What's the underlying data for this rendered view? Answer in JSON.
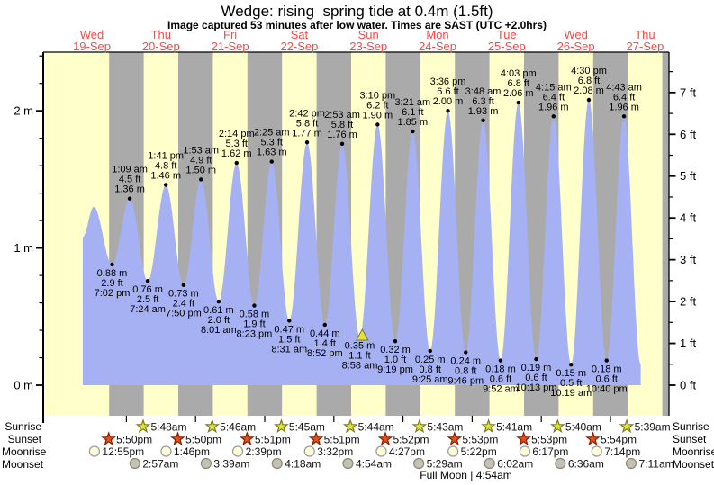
{
  "header": {
    "title": "Wedge: rising  spring tide at 0.4m (1.5ft)",
    "subtitle": "Image captured 53 minutes after low water. Times are SAST (UTC +2.0hrs)"
  },
  "colors": {
    "background": "#ffffff",
    "tide_fill": "#a5b1f2",
    "day_band": "#ffffcc",
    "night_band": "#aaaaaa",
    "day_label_red": "#ff4545",
    "marker_triangle": "#e8e135"
  },
  "axes": {
    "left_ticks": [
      "0 m",
      "1 m",
      "2 m"
    ],
    "right_ticks": [
      "0 ft",
      "1 ft",
      "2 ft",
      "3 ft",
      "4 ft",
      "5 ft",
      "6 ft",
      "7 ft"
    ]
  },
  "days": [
    {
      "dow": "Wed",
      "date": "19-Sep"
    },
    {
      "dow": "Thu",
      "date": "20-Sep"
    },
    {
      "dow": "Fri",
      "date": "21-Sep"
    },
    {
      "dow": "Sat",
      "date": "22-Sep"
    },
    {
      "dow": "Sun",
      "date": "23-Sep"
    },
    {
      "dow": "Mon",
      "date": "24-Sep"
    },
    {
      "dow": "Tue",
      "date": "25-Sep"
    },
    {
      "dow": "Wed",
      "date": "26-Sep"
    },
    {
      "dow": "Thu",
      "date": "27-Sep"
    }
  ],
  "chart_data": {
    "type": "area",
    "title": "Wedge: rising  spring tide at 0.4m (1.5ft)",
    "subtitle": "Image captured 53 minutes after low water. Times are SAST (UTC +2.0hrs)",
    "ylabel_left": "meters",
    "ylabel_right": "feet",
    "ylim_m": [
      0,
      2.43
    ],
    "ylim_ft": [
      0,
      7.5
    ],
    "x_range": [
      "Wed 19-Sep",
      "Thu 27-Sep"
    ],
    "grid": "off",
    "bands": {
      "day": "#ffffcc",
      "night": "#aaaaaa",
      "night_span": "6pm-6am"
    },
    "tide_events": [
      {
        "type": "low",
        "day": 0,
        "time": "7:02 pm",
        "m": "0.88 m",
        "ft": "2.9 ft"
      },
      {
        "type": "high",
        "day": 1,
        "time": "1:09 am",
        "m": "1.36 m",
        "ft": "4.5 ft"
      },
      {
        "type": "low",
        "day": 1,
        "time": "7:24 am",
        "m": "0.76 m",
        "ft": "2.5 ft"
      },
      {
        "type": "high",
        "day": 1,
        "time": "1:41 pm",
        "m": "1.46 m",
        "ft": "4.8 ft"
      },
      {
        "type": "low",
        "day": 1,
        "time": "7:50 pm",
        "m": "0.73 m",
        "ft": "2.4 ft"
      },
      {
        "type": "high",
        "day": 2,
        "time": "1:53 am",
        "m": "1.50 m",
        "ft": "4.9 ft"
      },
      {
        "type": "low",
        "day": 2,
        "time": "8:01 am",
        "m": "0.61 m",
        "ft": "2.0 ft"
      },
      {
        "type": "high",
        "day": 2,
        "time": "2:14 pm",
        "m": "1.62 m",
        "ft": "5.3 ft"
      },
      {
        "type": "low",
        "day": 2,
        "time": "8:23 pm",
        "m": "0.58 m",
        "ft": "1.9 ft"
      },
      {
        "type": "high",
        "day": 3,
        "time": "2:25 am",
        "m": "1.63 m",
        "ft": "5.3 ft"
      },
      {
        "type": "low",
        "day": 3,
        "time": "8:31 am",
        "m": "0.47 m",
        "ft": "1.5 ft"
      },
      {
        "type": "high",
        "day": 3,
        "time": "2:42 pm",
        "m": "1.77 m",
        "ft": "5.8 ft"
      },
      {
        "type": "low",
        "day": 3,
        "time": "8:52 pm",
        "m": "0.44 m",
        "ft": "1.4 ft"
      },
      {
        "type": "high",
        "day": 4,
        "time": "2:53 am",
        "m": "1.76 m",
        "ft": "5.8 ft"
      },
      {
        "type": "low",
        "day": 4,
        "time": "8:58 am",
        "m": "0.35 m",
        "ft": "1.1 ft"
      },
      {
        "type": "high",
        "day": 4,
        "time": "3:10 pm",
        "m": "1.90 m",
        "ft": "6.2 ft"
      },
      {
        "type": "low",
        "day": 4,
        "time": "9:19 pm",
        "m": "0.32 m",
        "ft": "1.0 ft"
      },
      {
        "type": "high",
        "day": 5,
        "time": "3:21 am",
        "m": "1.85 m",
        "ft": "6.1 ft"
      },
      {
        "type": "low",
        "day": 5,
        "time": "9:25 am",
        "m": "0.25 m",
        "ft": "0.8 ft"
      },
      {
        "type": "high",
        "day": 5,
        "time": "3:36 pm",
        "m": "2.00 m",
        "ft": "6.6 ft"
      },
      {
        "type": "low",
        "day": 5,
        "time": "9:46 pm",
        "m": "0.24 m",
        "ft": "0.8 ft"
      },
      {
        "type": "high",
        "day": 6,
        "time": "3:48 am",
        "m": "1.93 m",
        "ft": "6.3 ft"
      },
      {
        "type": "low",
        "day": 6,
        "time": "9:52 am",
        "m": "0.18 m",
        "ft": "0.6 ft"
      },
      {
        "type": "high",
        "day": 6,
        "time": "4:03 pm",
        "m": "2.06 m",
        "ft": "6.8 ft"
      },
      {
        "type": "low",
        "day": 6,
        "time": "10:13 pm",
        "m": "0.19 m",
        "ft": "0.6 ft"
      },
      {
        "type": "high",
        "day": 7,
        "time": "4:15 am",
        "m": "1.96 m",
        "ft": "6.4 ft"
      },
      {
        "type": "low",
        "day": 7,
        "time": "10:19 am",
        "m": "0.15 m",
        "ft": "0.5 ft"
      },
      {
        "type": "high",
        "day": 7,
        "time": "4:30 pm",
        "m": "2.08 m",
        "ft": "6.8 ft"
      },
      {
        "type": "low",
        "day": 7,
        "time": "10:40 pm",
        "m": "0.18 m",
        "ft": "0.6 ft"
      },
      {
        "type": "high",
        "day": 8,
        "time": "4:43 am",
        "m": "1.96 m",
        "ft": "6.4 ft"
      }
    ],
    "curve_edges": {
      "start": {
        "day": 0,
        "time": "8:50 am",
        "height_m": 1.08
      },
      "first_peak_unlabeled": {
        "day": 0,
        "time": "12:40 pm",
        "height_m": 1.3
      },
      "end": {
        "day": 8,
        "time": "10:30 am",
        "height_m": 0.15
      }
    },
    "capture_marker": {
      "day": 4,
      "time": "9:51 am",
      "shape": "triangle",
      "note": "53 minutes after low water"
    }
  },
  "sun_moon": {
    "rows": [
      {
        "key": "sunrise",
        "label": "Sunrise",
        "icon": "sunrise-star",
        "color": "#dde23c",
        "times": [
          {
            "day": 1,
            "time": "5:48am"
          },
          {
            "day": 2,
            "time": "5:46am"
          },
          {
            "day": 3,
            "time": "5:45am"
          },
          {
            "day": 4,
            "time": "5:44am"
          },
          {
            "day": 5,
            "time": "5:43am"
          },
          {
            "day": 6,
            "time": "5:41am"
          },
          {
            "day": 7,
            "time": "5:40am"
          },
          {
            "day": 8,
            "time": "5:39am"
          }
        ]
      },
      {
        "key": "sunset",
        "label": "Sunset",
        "icon": "sunset-star",
        "color": "#e0511d",
        "times": [
          {
            "day": 0,
            "time": "5:50pm"
          },
          {
            "day": 1,
            "time": "5:50pm"
          },
          {
            "day": 2,
            "time": "5:51pm"
          },
          {
            "day": 3,
            "time": "5:51pm"
          },
          {
            "day": 4,
            "time": "5:52pm"
          },
          {
            "day": 5,
            "time": "5:53pm"
          },
          {
            "day": 6,
            "time": "5:53pm"
          },
          {
            "day": 7,
            "time": "5:54pm"
          }
        ]
      },
      {
        "key": "moonrise",
        "label": "Moonrise",
        "icon": "moonrise-circle",
        "color": "#ffffd9",
        "times": [
          {
            "day": 0,
            "time": "12:55pm"
          },
          {
            "day": 1,
            "time": "1:46pm"
          },
          {
            "day": 2,
            "time": "2:39pm"
          },
          {
            "day": 3,
            "time": "3:32pm"
          },
          {
            "day": 4,
            "time": "4:27pm"
          },
          {
            "day": 5,
            "time": "5:22pm"
          },
          {
            "day": 6,
            "time": "6:17pm"
          },
          {
            "day": 7,
            "time": "7:14pm"
          }
        ]
      },
      {
        "key": "moonset",
        "label": "Moonset",
        "icon": "moonset-circle",
        "color": "#c6c2b2",
        "times": [
          {
            "day": 1,
            "time": "2:57am"
          },
          {
            "day": 2,
            "time": "3:39am"
          },
          {
            "day": 3,
            "time": "4:18am"
          },
          {
            "day": 4,
            "time": "4:54am"
          },
          {
            "day": 5,
            "time": "5:29am"
          },
          {
            "day": 6,
            "time": "6:02am"
          },
          {
            "day": 7,
            "time": "6:36am"
          },
          {
            "day": 8,
            "time": "7:11am"
          }
        ]
      }
    ],
    "footnote": "Full Moon | 4:54am"
  }
}
